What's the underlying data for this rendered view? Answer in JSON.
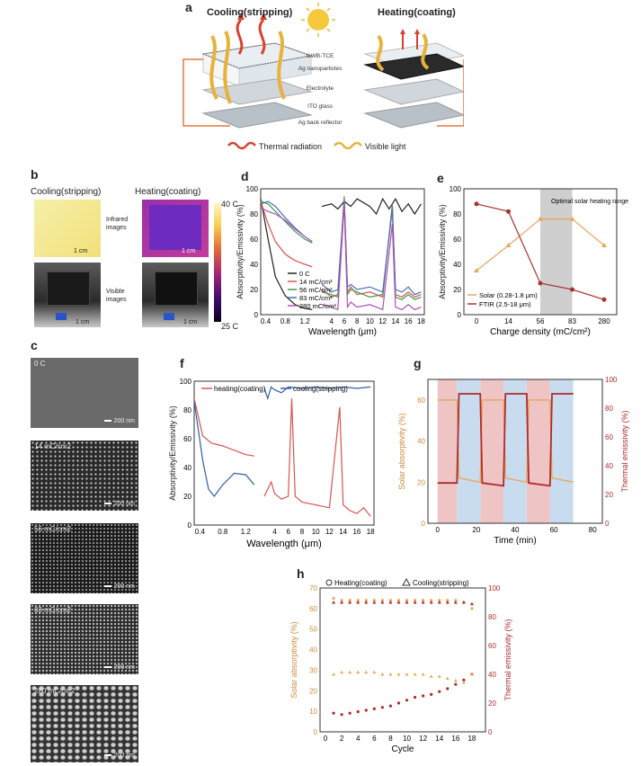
{
  "panels": {
    "a": "a",
    "b": "b",
    "c": "c",
    "d": "d",
    "e": "e",
    "f": "f",
    "g": "g",
    "h": "h"
  },
  "panel_a": {
    "left_title": "Cooling(stripping)",
    "right_title": "Heating(coating)",
    "layers": [
      "ILWB-TCE",
      "Ag nanoparticles",
      "Electrolyte",
      "ITO glass",
      "Ag back reflector"
    ],
    "legend_thermal": "Thermal radiation",
    "legend_visible": "Visible light",
    "colors": {
      "thermal": "#d9412f",
      "visible": "#e8b23a",
      "circuit": "#e07b3c"
    }
  },
  "panel_b": {
    "left_title": "Cooling(stripping)",
    "right_title": "Heating(coating)",
    "infrared_label": "Infrared images",
    "visible_label": "Visible images",
    "scale_1": "1 cm",
    "scale_2": "1 cm",
    "scale_3": "1 cm",
    "scale_4": "1 cm",
    "cbar_max": "40 C",
    "cbar_min": "25 C"
  },
  "panel_c": {
    "images": [
      {
        "label": "0 C",
        "scale": "200 nm"
      },
      {
        "label": "14 mC/cm2",
        "scale": "200 nm"
      },
      {
        "label": "56 mC/cm2",
        "scale": "200 nm"
      },
      {
        "label": "83 mC/cm2",
        "scale": "200 nm"
      },
      {
        "label": "280 mC/cm2",
        "scale": "200 nm"
      }
    ]
  },
  "chart_data": [
    {
      "id": "d",
      "type": "line",
      "xlabel": "Wavelength (μm)",
      "ylabel": "Absorptivity/Emissivity (%)",
      "ylim": [
        0,
        100
      ],
      "yticks": [
        "0",
        "20",
        "40",
        "60",
        "80",
        "100"
      ],
      "xticks_left": [
        "0.4",
        "0.8",
        "1.2"
      ],
      "xticks_right": [
        "4",
        "6",
        "8",
        "10",
        "12",
        "14",
        "16",
        "18"
      ],
      "legend": [
        "0 C",
        "14 mC/cm²",
        "56 mC/cm²",
        "83 mC/cm²",
        "280 mC/cm²"
      ],
      "colors": [
        "#222222",
        "#d9534f",
        "#3c9a4a",
        "#4a6fb5",
        "#b04fb5"
      ],
      "series_left": [
        [
          [
            0.3,
            92
          ],
          [
            0.45,
            60
          ],
          [
            0.6,
            30
          ],
          [
            0.8,
            15
          ],
          [
            1.0,
            8
          ],
          [
            1.2,
            5
          ],
          [
            1.35,
            4
          ]
        ],
        [
          [
            0.3,
            90
          ],
          [
            0.45,
            72
          ],
          [
            0.6,
            58
          ],
          [
            0.8,
            48
          ],
          [
            1.0,
            43
          ],
          [
            1.2,
            40
          ],
          [
            1.35,
            38
          ]
        ],
        [
          [
            0.3,
            90
          ],
          [
            0.45,
            88
          ],
          [
            0.6,
            82
          ],
          [
            0.8,
            74
          ],
          [
            1.0,
            66
          ],
          [
            1.2,
            60
          ],
          [
            1.35,
            57
          ]
        ],
        [
          [
            0.3,
            88
          ],
          [
            0.45,
            90
          ],
          [
            0.6,
            86
          ],
          [
            0.8,
            77
          ],
          [
            1.0,
            69
          ],
          [
            1.2,
            62
          ],
          [
            1.35,
            58
          ]
        ],
        [
          [
            0.3,
            85
          ],
          [
            0.45,
            82
          ],
          [
            0.6,
            80
          ],
          [
            0.8,
            75
          ],
          [
            1.0,
            68
          ],
          [
            1.2,
            62
          ],
          [
            1.35,
            58
          ]
        ]
      ],
      "series_right": [
        [
          [
            2.5,
            86
          ],
          [
            4,
            88
          ],
          [
            5,
            84
          ],
          [
            6,
            90
          ],
          [
            7,
            86
          ],
          [
            8,
            92
          ],
          [
            10,
            86
          ],
          [
            11,
            80
          ],
          [
            12,
            92
          ],
          [
            13,
            84
          ],
          [
            14,
            92
          ],
          [
            15,
            82
          ],
          [
            16,
            88
          ],
          [
            17,
            80
          ],
          [
            18,
            88
          ]
        ],
        [
          [
            2.5,
            20
          ],
          [
            4,
            14
          ],
          [
            5,
            16
          ],
          [
            6,
            94
          ],
          [
            6.5,
            18
          ],
          [
            7,
            22
          ],
          [
            8,
            16
          ],
          [
            10,
            18
          ],
          [
            12,
            14
          ],
          [
            13.5,
            88
          ],
          [
            14,
            16
          ],
          [
            15,
            14
          ],
          [
            16,
            18
          ],
          [
            17,
            14
          ],
          [
            18,
            16
          ]
        ],
        [
          [
            2.5,
            18
          ],
          [
            4,
            16
          ],
          [
            5,
            14
          ],
          [
            6,
            92
          ],
          [
            6.5,
            16
          ],
          [
            7,
            20
          ],
          [
            8,
            18
          ],
          [
            10,
            14
          ],
          [
            12,
            16
          ],
          [
            13.5,
            86
          ],
          [
            14,
            14
          ],
          [
            15,
            12
          ],
          [
            16,
            16
          ],
          [
            17,
            12
          ],
          [
            18,
            14
          ]
        ],
        [
          [
            2.5,
            24
          ],
          [
            4,
            18
          ],
          [
            5,
            20
          ],
          [
            6,
            90
          ],
          [
            6.5,
            22
          ],
          [
            7,
            24
          ],
          [
            8,
            20
          ],
          [
            10,
            22
          ],
          [
            12,
            18
          ],
          [
            13.5,
            84
          ],
          [
            14,
            20
          ],
          [
            15,
            18
          ],
          [
            16,
            22
          ],
          [
            17,
            16
          ],
          [
            18,
            18
          ]
        ],
        [
          [
            2.5,
            8
          ],
          [
            4,
            6
          ],
          [
            5,
            4
          ],
          [
            6,
            88
          ],
          [
            6.5,
            6
          ],
          [
            7,
            10
          ],
          [
            8,
            6
          ],
          [
            10,
            8
          ],
          [
            12,
            4
          ],
          [
            13.5,
            72
          ],
          [
            14,
            6
          ],
          [
            15,
            4
          ],
          [
            16,
            8
          ],
          [
            17,
            4
          ],
          [
            18,
            6
          ]
        ]
      ]
    },
    {
      "id": "e",
      "type": "line",
      "title_annotation": "Optimal solar heating range",
      "xlabel": "Charge density (mC/cm²)",
      "ylabel": "Absorptivity/Emissivity (%)",
      "categories": [
        "0",
        "14",
        "56",
        "83",
        "280"
      ],
      "ylim": [
        0,
        100
      ],
      "yticks": [
        "0",
        "20",
        "40",
        "60",
        "80",
        "100"
      ],
      "series": [
        {
          "name": "Solar (0.28-1.8 μm)",
          "values": [
            35,
            55,
            76,
            76,
            55
          ],
          "color": "#e8a85a"
        },
        {
          "name": "FTIR (2.5-18 μm)",
          "values": [
            88,
            82,
            25,
            20,
            12
          ],
          "color": "#a8332f"
        }
      ],
      "shaded_range": [
        "56",
        "83"
      ]
    },
    {
      "id": "f",
      "type": "line",
      "xlabel": "Wavelength (μm)",
      "ylabel": "Absorptivity/Emissivity (%)",
      "ylim": [
        0,
        100
      ],
      "yticks": [
        "0",
        "20",
        "40",
        "60",
        "80",
        "100"
      ],
      "xticks_left": [
        "0.4",
        "0.8",
        "1.2"
      ],
      "xticks_right": [
        "4",
        "6",
        "8",
        "10",
        "12",
        "14",
        "16",
        "18"
      ],
      "series": [
        {
          "name": "heating(coating)",
          "color": "#d9534f"
        },
        {
          "name": "cooling(stripping)",
          "color": "#2e5fa8"
        }
      ],
      "series_left": [
        [
          [
            0.3,
            88
          ],
          [
            0.45,
            62
          ],
          [
            0.6,
            57
          ],
          [
            0.8,
            55
          ],
          [
            1.0,
            52
          ],
          [
            1.2,
            49
          ],
          [
            1.35,
            48
          ]
        ],
        [
          [
            0.3,
            86
          ],
          [
            0.45,
            45
          ],
          [
            0.55,
            25
          ],
          [
            0.65,
            20
          ],
          [
            0.8,
            28
          ],
          [
            1.0,
            36
          ],
          [
            1.2,
            35
          ],
          [
            1.35,
            28
          ]
        ]
      ],
      "series_right": [
        [
          [
            2.5,
            20
          ],
          [
            3.5,
            30
          ],
          [
            4,
            22
          ],
          [
            5,
            18
          ],
          [
            6,
            20
          ],
          [
            6.5,
            88
          ],
          [
            7,
            20
          ],
          [
            8,
            16
          ],
          [
            10,
            14
          ],
          [
            12,
            12
          ],
          [
            13.5,
            82
          ],
          [
            14,
            14
          ],
          [
            15,
            10
          ],
          [
            16,
            8
          ],
          [
            17,
            12
          ],
          [
            18,
            6
          ]
        ],
        [
          [
            2.5,
            95
          ],
          [
            3,
            88
          ],
          [
            3.5,
            96
          ],
          [
            4,
            94
          ],
          [
            5,
            92
          ],
          [
            6,
            96
          ],
          [
            8,
            95
          ],
          [
            10,
            96
          ],
          [
            12,
            95
          ],
          [
            14,
            96
          ],
          [
            16,
            95
          ],
          [
            18,
            96
          ]
        ]
      ]
    },
    {
      "id": "g",
      "type": "line",
      "xlabel": "Time (min)",
      "ylabel_left": "Solar absorptivity (%)",
      "ylabel_right": "Thermal emissivity (%)",
      "xlim": [
        -5,
        85
      ],
      "xticks": [
        "0",
        "20",
        "40",
        "60",
        "80"
      ],
      "ylim_left": [
        0,
        70
      ],
      "yticks_left": [
        "0",
        "20",
        "40",
        "60"
      ],
      "ylim_right": [
        0,
        100
      ],
      "yticks_right": [
        "0",
        "20",
        "40",
        "60",
        "80",
        "100"
      ],
      "heating_bands": [
        [
          0,
          10
        ],
        [
          22,
          34
        ],
        [
          46,
          58
        ]
      ],
      "cooling_bands": [
        [
          10,
          22
        ],
        [
          34,
          46
        ],
        [
          58,
          70
        ]
      ],
      "series": [
        {
          "name": "Solar absorptivity",
          "color": "#e8a85a",
          "values": [
            [
              0,
              60
            ],
            [
              10,
              60
            ],
            [
              11,
              22
            ],
            [
              22,
              20
            ],
            [
              23,
              60
            ],
            [
              34,
              60
            ],
            [
              35,
              22
            ],
            [
              46,
              20
            ],
            [
              47,
              60
            ],
            [
              58,
              60
            ],
            [
              59,
              22
            ],
            [
              70,
              20
            ]
          ]
        },
        {
          "name": "Thermal emissivity",
          "color": "#b02a2a",
          "values": [
            [
              0,
              28
            ],
            [
              10,
              28
            ],
            [
              11,
              90
            ],
            [
              22,
              90
            ],
            [
              23,
              28
            ],
            [
              34,
              26
            ],
            [
              35,
              90
            ],
            [
              46,
              90
            ],
            [
              47,
              28
            ],
            [
              58,
              26
            ],
            [
              59,
              90
            ],
            [
              70,
              90
            ]
          ]
        }
      ]
    },
    {
      "id": "h",
      "type": "scatter",
      "legend": [
        "Heating(coating)",
        "Cooling(stripping)"
      ],
      "xlabel": "Cycle",
      "ylabel_left": "Solar absorptivity (%)",
      "ylabel_right": "Thermal emissivity (%)",
      "xticks": [
        "0",
        "2",
        "4",
        "6",
        "8",
        "10",
        "12",
        "14",
        "16",
        "18"
      ],
      "ylim_left": [
        0,
        70
      ],
      "yticks_left": [
        "0",
        "10",
        "20",
        "30",
        "40",
        "50",
        "60",
        "70"
      ],
      "ylim_right": [
        0,
        100
      ],
      "yticks_right": [
        "0",
        "20",
        "40",
        "60",
        "80",
        "100"
      ],
      "cycles": [
        1,
        2,
        3,
        4,
        5,
        6,
        7,
        8,
        9,
        10,
        11,
        12,
        13,
        14,
        15,
        16,
        17,
        18
      ],
      "heating_solar": [
        65,
        64,
        64,
        64,
        64,
        64,
        64,
        64,
        64,
        64,
        64,
        64,
        64,
        64,
        64,
        64,
        63,
        60
      ],
      "heating_thermal": [
        13,
        12,
        13,
        14,
        15,
        16,
        17,
        18,
        20,
        22,
        24,
        25,
        26,
        28,
        30,
        33,
        36,
        40
      ],
      "cooling_solar": [
        28,
        29,
        29,
        29,
        29,
        29,
        28,
        28,
        28,
        28,
        28,
        28,
        27,
        27,
        26,
        25,
        24,
        28
      ],
      "cooling_thermal": [
        90,
        90,
        90,
        90,
        90,
        90,
        90,
        90,
        90,
        90,
        90,
        90,
        90,
        90,
        90,
        90,
        90,
        89
      ],
      "colors": {
        "solar": "#e8a85a",
        "thermal": "#b02a2a"
      }
    }
  ]
}
